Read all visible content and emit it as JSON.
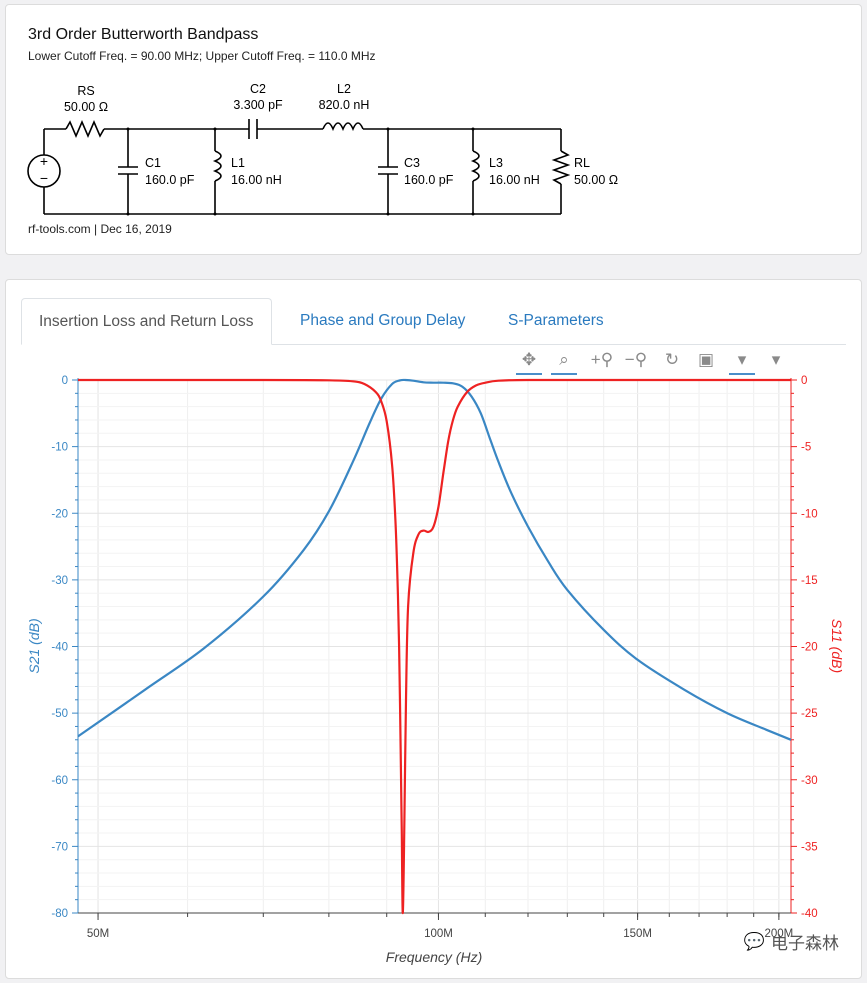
{
  "schematic": {
    "title": "3rd Order Butterworth Bandpass",
    "subtitle": "Lower Cutoff Freq. = 90.00 MHz; Upper Cutoff Freq. = 110.0 MHz",
    "footer": "rf-tools.com | Dec 16, 2019",
    "source": {
      "plus": "+",
      "minus": "−"
    },
    "components": {
      "RS": {
        "name": "RS",
        "value": "50.00 Ω"
      },
      "C1": {
        "name": "C1",
        "value": "160.0 pF"
      },
      "L1": {
        "name": "L1",
        "value": "16.00 nH"
      },
      "C2": {
        "name": "C2",
        "value": "3.300 pF"
      },
      "L2": {
        "name": "L2",
        "value": "820.0 nH"
      },
      "C3": {
        "name": "C3",
        "value": "160.0 pF"
      },
      "L3": {
        "name": "L3",
        "value": "16.00 nH"
      },
      "RL": {
        "name": "RL",
        "value": "50.00 Ω"
      }
    }
  },
  "tabs": [
    {
      "label": "Insertion Loss and Return Loss",
      "active": true
    },
    {
      "label": "Phase and Group Delay",
      "active": false
    },
    {
      "label": "S-Parameters",
      "active": false
    }
  ],
  "toolbar": [
    {
      "name": "pan-tool",
      "icon": "pan-icon",
      "glyph": "✥",
      "selected": true
    },
    {
      "name": "box-zoom-tool",
      "icon": "box-zoom-icon",
      "glyph": "⌕",
      "selected": true
    },
    {
      "name": "zoom-in-tool",
      "icon": "zoom-in-icon",
      "glyph": "+⚲",
      "selected": false
    },
    {
      "name": "zoom-out-tool",
      "icon": "zoom-out-icon",
      "glyph": "−⚲",
      "selected": false
    },
    {
      "name": "reset-tool",
      "icon": "reset-icon",
      "glyph": "↻",
      "selected": false
    },
    {
      "name": "save-tool",
      "icon": "save-icon",
      "glyph": "▣",
      "selected": false
    },
    {
      "name": "hover-tool-1",
      "icon": "hover-icon",
      "glyph": "▾",
      "selected": true
    },
    {
      "name": "hover-tool-2",
      "icon": "hover-icon",
      "glyph": "▾",
      "selected": false
    }
  ],
  "watermark": "电子森林",
  "chart_data": {
    "type": "line",
    "xlabel": "Frequency (Hz)",
    "ylabel_left": "S21 (dB)",
    "ylabel_right": "S11 (dB)",
    "x_scale": "log",
    "xlim": [
      48000000,
      205000000
    ],
    "x_ticks": [
      {
        "value": 50000000,
        "label": "50M"
      },
      {
        "value": 100000000,
        "label": "100M"
      },
      {
        "value": 150000000,
        "label": "150M"
      },
      {
        "value": 200000000,
        "label": "200M"
      }
    ],
    "ylim_left": [
      -80,
      0
    ],
    "yticks_left": [
      0,
      -10,
      -20,
      -30,
      -40,
      -50,
      -60,
      -70,
      -80
    ],
    "ylim_right": [
      -40,
      0
    ],
    "yticks_right": [
      0,
      -5,
      -10,
      -15,
      -20,
      -25,
      -30,
      -35,
      -40
    ],
    "grid": true,
    "colors": {
      "S21": "#3a87c4",
      "S11": "#ee2222"
    },
    "series": [
      {
        "axis": "left",
        "x": [
          48000000,
          55000000,
          62000000,
          70000000,
          76000000,
          80000000,
          84000000,
          87000000,
          89000000,
          91000000,
          92500000,
          93500000,
          95000000,
          97000000,
          99000000,
          101000000,
          103000000,
          105000000,
          107000000,
          109000000,
          111000000,
          113000000,
          116000000,
          120000000,
          125000000,
          130000000,
          140000000,
          150000000,
          165000000,
          180000000,
          195000000,
          205000000
        ],
        "y": [
          -53.5,
          -46.5,
          -40.3,
          -32.5,
          -25.5,
          -19.7,
          -12.3,
          -6.3,
          -2.8,
          -0.6,
          -0.05,
          0.0,
          -0.1,
          -0.35,
          -0.4,
          -0.4,
          -0.5,
          -1.0,
          -2.5,
          -5.0,
          -8.7,
          -12.3,
          -17.0,
          -22.0,
          -27.2,
          -31.5,
          -37.5,
          -42.0,
          -46.5,
          -50.0,
          -52.5,
          -54.0
        ]
      },
      {
        "axis": "right",
        "x": [
          48000000,
          70000000,
          80000000,
          84000000,
          86000000,
          88000000,
          89000000,
          90000000,
          91000000,
          91600000,
          92000000,
          92300000,
          92600000,
          92800000,
          93000000,
          93300000,
          93600000,
          94000000,
          95000000,
          96000000,
          97000000,
          98000000,
          99000000,
          100000000,
          101000000,
          102000000,
          103000000,
          104000000,
          106000000,
          108000000,
          110000000,
          113000000,
          120000000,
          140000000,
          205000000
        ],
        "y": [
          0,
          0,
          -0.02,
          -0.1,
          -0.3,
          -0.9,
          -1.6,
          -3.1,
          -6.4,
          -10.5,
          -15.0,
          -20.0,
          -28.0,
          -34.0,
          -40.0,
          -33.0,
          -24.0,
          -17.0,
          -13.0,
          -11.6,
          -11.3,
          -11.4,
          -11.0,
          -9.5,
          -7.0,
          -4.6,
          -3.0,
          -2.0,
          -0.9,
          -0.4,
          -0.2,
          -0.05,
          0,
          0,
          0
        ]
      }
    ]
  }
}
